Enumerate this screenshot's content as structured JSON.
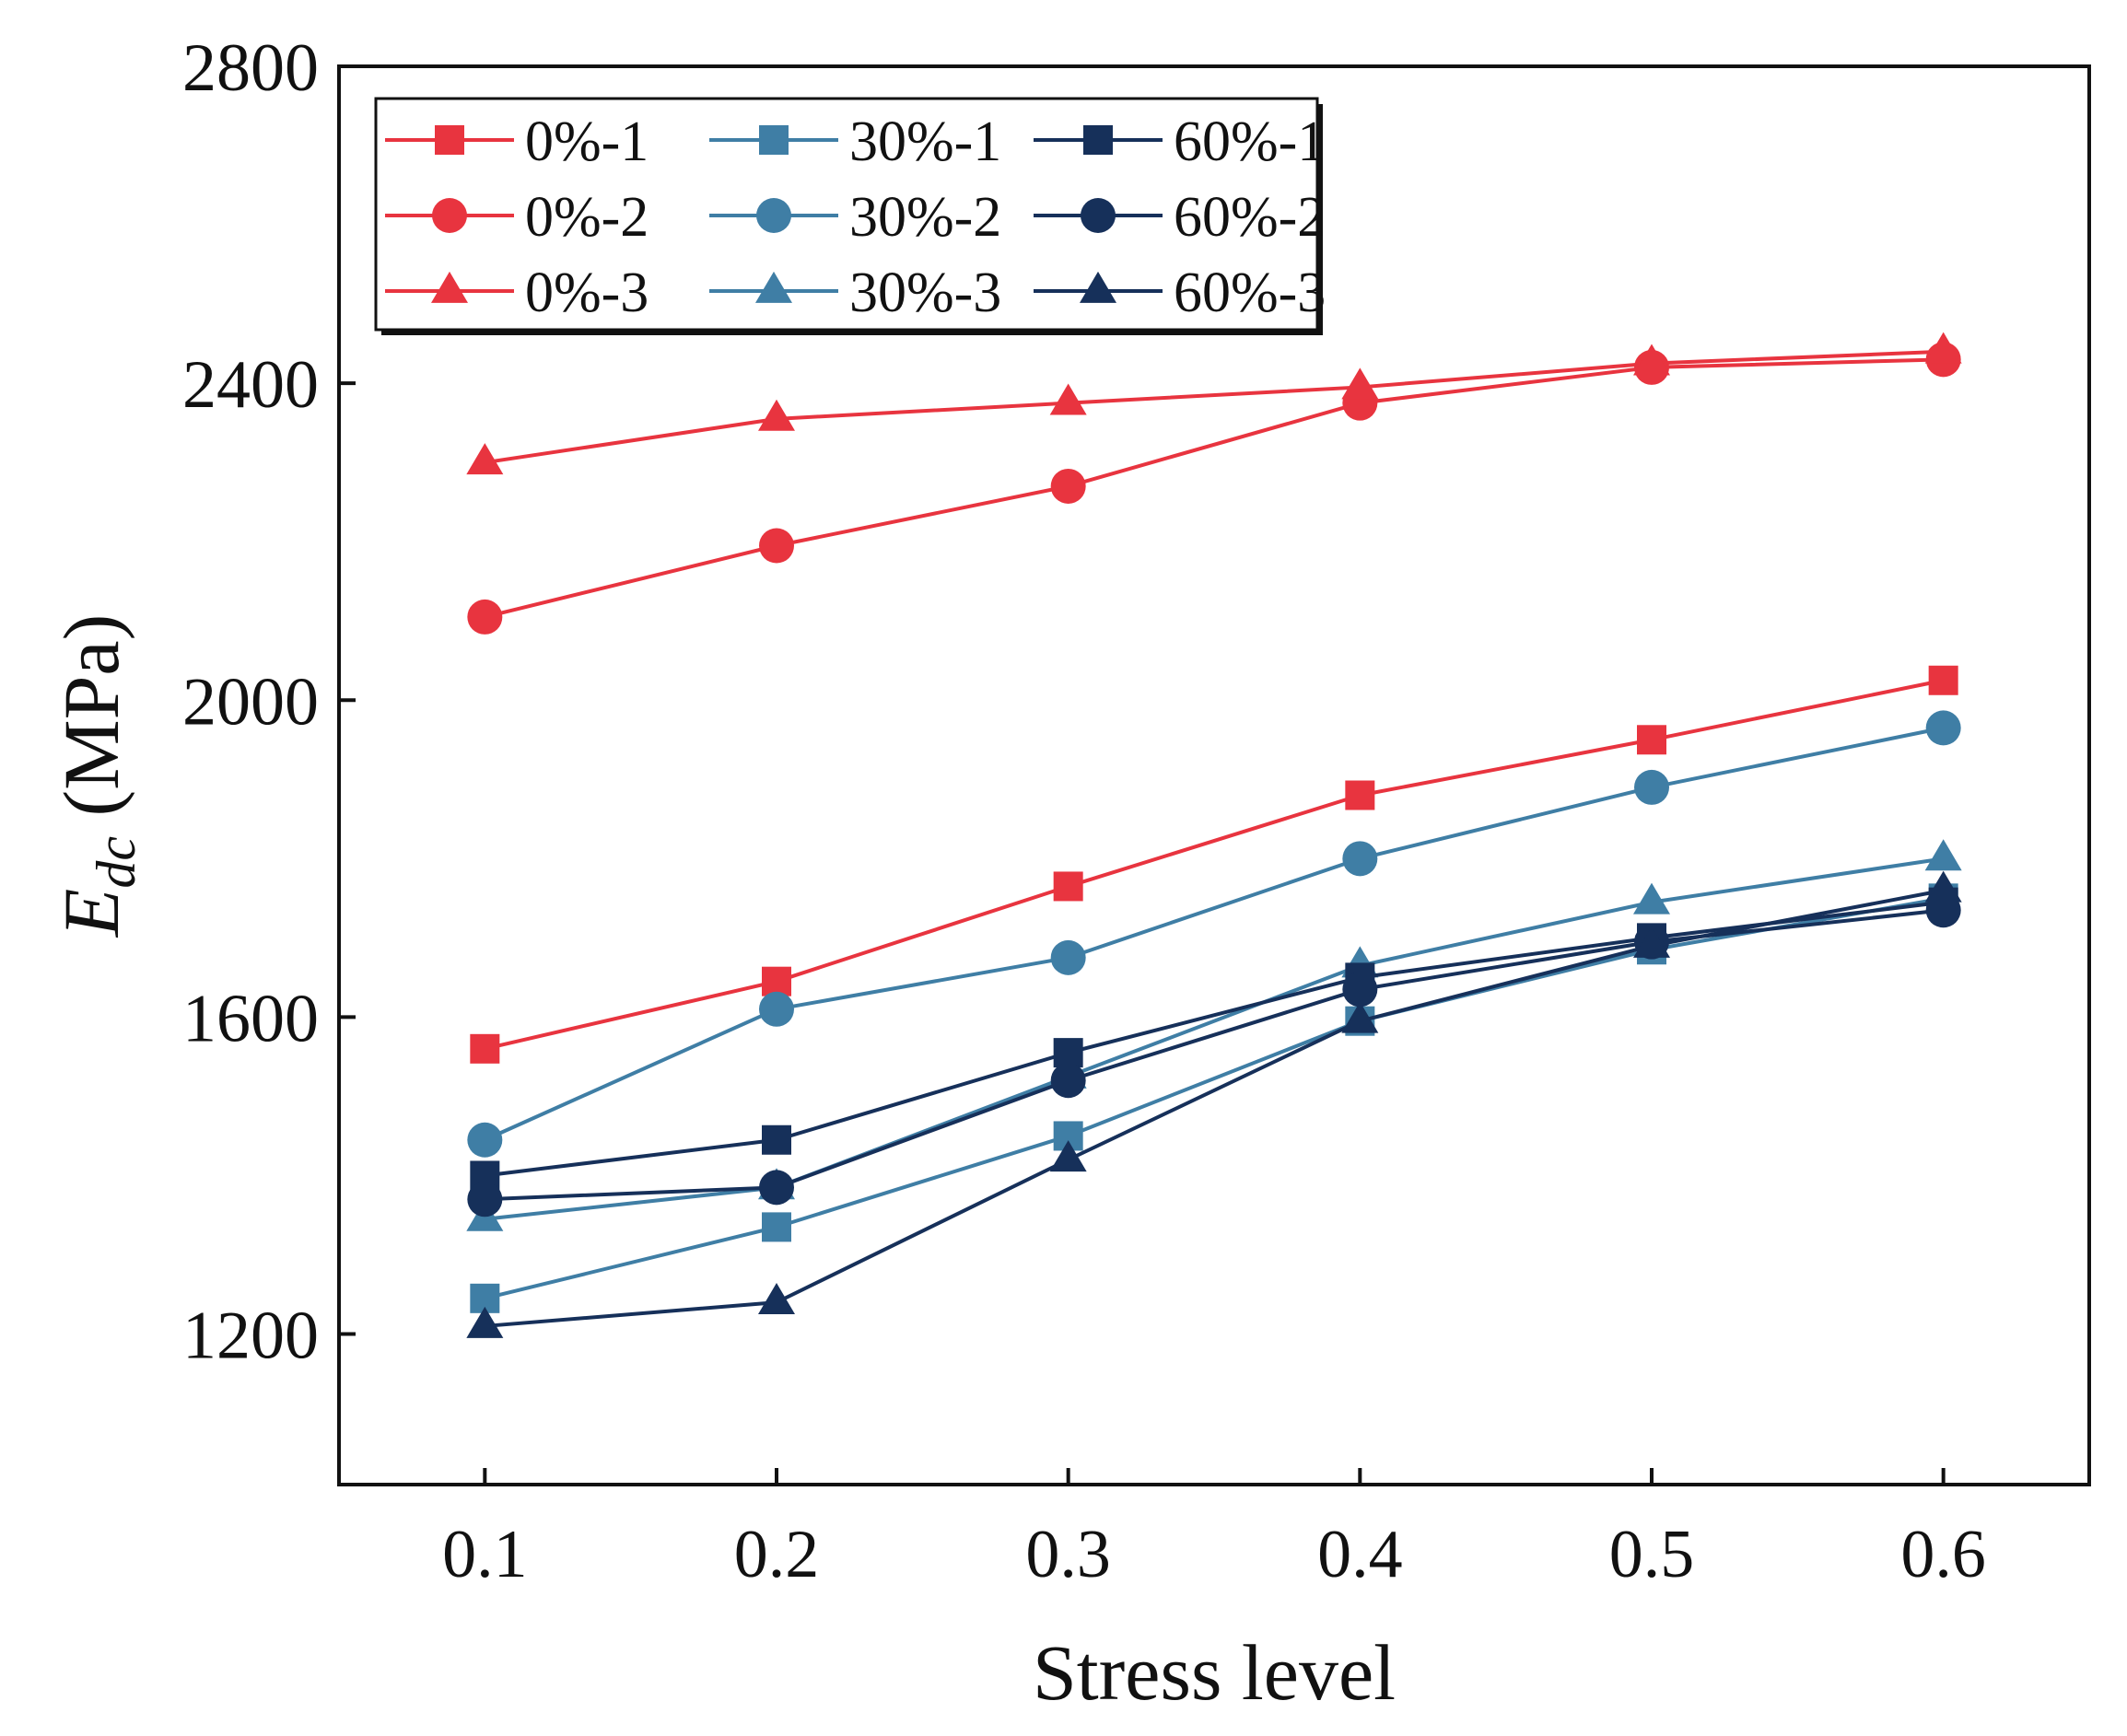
{
  "chart_data": {
    "type": "line",
    "title": "",
    "xlabel": "Stress level",
    "ylabel": {
      "symbol": "E",
      "subscript": "dc",
      "unit": " (MPa)"
    },
    "xlim": [
      0.05,
      0.65
    ],
    "ylim": [
      1010,
      2800
    ],
    "x_ticks": [
      "0.1",
      "0.2",
      "0.3",
      "0.4",
      "0.5",
      "0.6"
    ],
    "y_ticks": [
      "1200",
      "1600",
      "2000",
      "2400",
      "2800"
    ],
    "x": [
      0.1,
      0.2,
      0.3,
      0.4,
      0.5,
      0.6
    ],
    "grid": false,
    "legend_position": "top-left",
    "series": [
      {
        "name": "0%-1",
        "color": "#e8343f",
        "marker": "square",
        "values": [
          1560,
          1645,
          1765,
          1880,
          1950,
          2025
        ]
      },
      {
        "name": "0%-2",
        "color": "#e8343f",
        "marker": "circle",
        "values": [
          2105,
          2195,
          2270,
          2375,
          2420,
          2430
        ]
      },
      {
        "name": "0%-3",
        "color": "#e8343f",
        "marker": "triangle",
        "values": [
          2300,
          2355,
          2375,
          2395,
          2425,
          2440
        ]
      },
      {
        "name": "30%-1",
        "color": "#3f7ea5",
        "marker": "square",
        "values": [
          1245,
          1335,
          1450,
          1595,
          1685,
          1750
        ]
      },
      {
        "name": "30%-2",
        "color": "#3f7ea5",
        "marker": "circle",
        "values": [
          1445,
          1610,
          1675,
          1800,
          1890,
          1965
        ]
      },
      {
        "name": "30%-3",
        "color": "#3f7ea5",
        "marker": "triangle",
        "values": [
          1345,
          1385,
          1525,
          1665,
          1745,
          1800
        ]
      },
      {
        "name": "60%-1",
        "color": "#16305a",
        "marker": "square",
        "values": [
          1400,
          1445,
          1555,
          1650,
          1700,
          1745
        ]
      },
      {
        "name": "60%-2",
        "color": "#16305a",
        "marker": "circle",
        "values": [
          1370,
          1385,
          1520,
          1635,
          1695,
          1735
        ]
      },
      {
        "name": "60%-3",
        "color": "#16305a",
        "marker": "triangle",
        "values": [
          1210,
          1240,
          1420,
          1595,
          1690,
          1760
        ]
      }
    ]
  }
}
